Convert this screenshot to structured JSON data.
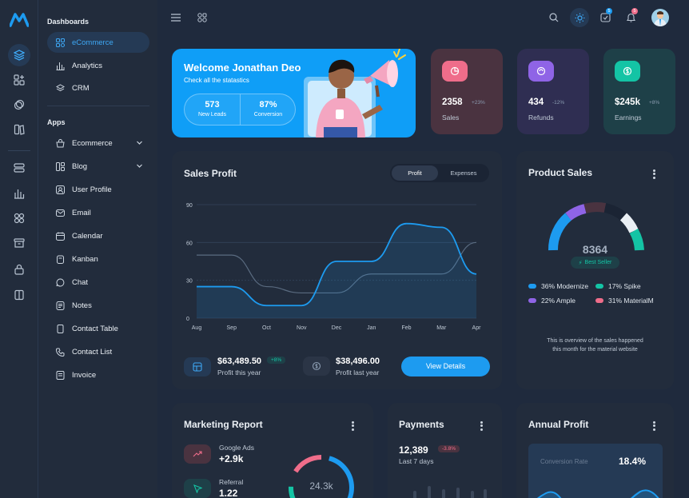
{
  "sidebar": {
    "dashboards_title": "Dashboards",
    "dashboards": [
      {
        "label": "eCommerce",
        "active": true
      },
      {
        "label": "Analytics"
      },
      {
        "label": "CRM"
      }
    ],
    "apps_title": "Apps",
    "apps": [
      {
        "label": "Ecommerce"
      },
      {
        "label": "Blog"
      },
      {
        "label": "User Profile"
      },
      {
        "label": "Email"
      },
      {
        "label": "Calendar"
      },
      {
        "label": "Kanban"
      },
      {
        "label": "Chat"
      },
      {
        "label": "Notes"
      },
      {
        "label": "Contact Table"
      },
      {
        "label": "Contact List"
      },
      {
        "label": "Invoice"
      }
    ]
  },
  "topbar": {
    "email_badge": "5",
    "notif_badge": "5"
  },
  "welcome": {
    "title": "Welcome Jonathan Deo",
    "subtitle": "Check all the statastics",
    "stat1_value": "573",
    "stat1_label": "New Leads",
    "stat2_value": "87%",
    "stat2_label": "Conversion"
  },
  "stats": [
    {
      "value": "2358",
      "change": "+23%",
      "label": "Sales",
      "bg": "#4a3340",
      "icon_bg": "#ef6d8a"
    },
    {
      "value": "434",
      "change": "-12%",
      "label": "Refunds",
      "bg": "#2f2e52",
      "icon_bg": "#8f64e6"
    },
    {
      "value": "$245k",
      "change": "+8%",
      "label": "Earnings",
      "bg": "#1e4048",
      "icon_bg": "#14c4a5"
    }
  ],
  "sales_profit": {
    "title": "Sales Profit",
    "tab_profit": "Profit",
    "tab_expenses": "Expenses",
    "profit_value": "$63,489.50",
    "profit_badge": "+8%",
    "profit_label": "Profit this year",
    "last_value": "$38,496.00",
    "last_label": "Profit last year",
    "button": "View Details"
  },
  "chart_data": {
    "type": "area",
    "categories": [
      "Aug",
      "Sep",
      "Oct",
      "Nov",
      "Dec",
      "Jan",
      "Feb",
      "Mar",
      "Apr"
    ],
    "yticks": [
      "90",
      "60",
      "30",
      "0"
    ],
    "ylim": [
      0,
      90
    ],
    "series": [
      {
        "name": "Profit",
        "values": [
          25,
          25,
          10,
          10,
          45,
          45,
          75,
          72,
          35
        ],
        "color": "#1d9bf0"
      },
      {
        "name": "Expenses",
        "values": [
          50,
          50,
          25,
          20,
          20,
          35,
          35,
          35,
          60
        ],
        "color": "#5a6b80"
      }
    ]
  },
  "product_sales": {
    "title": "Product Sales",
    "center_value": "8364",
    "badge": "Best Seller",
    "legend": [
      {
        "label": "36% Modernize",
        "color": "#1d9bf0"
      },
      {
        "label": "17% Spike",
        "color": "#14c4a5"
      },
      {
        "label": "22% Ample",
        "color": "#8f64e6"
      },
      {
        "label": "31% MaterialM",
        "color": "#ef6d8a"
      }
    ],
    "note_line1": "This is overview of the sales happened",
    "note_line2": "this month for the material website"
  },
  "marketing": {
    "title": "Marketing Report",
    "item1_label": "Google Ads",
    "item1_value": "+2.9k",
    "item2_label": "Referral",
    "item2_value": "1.22",
    "donut_value": "24.3k"
  },
  "payments": {
    "title": "Payments",
    "value": "12,389",
    "badge": "-3.8%",
    "label": "Last 7 days"
  },
  "annual": {
    "title": "Annual Profit",
    "label": "Conversion Rate",
    "value": "18.4%"
  }
}
